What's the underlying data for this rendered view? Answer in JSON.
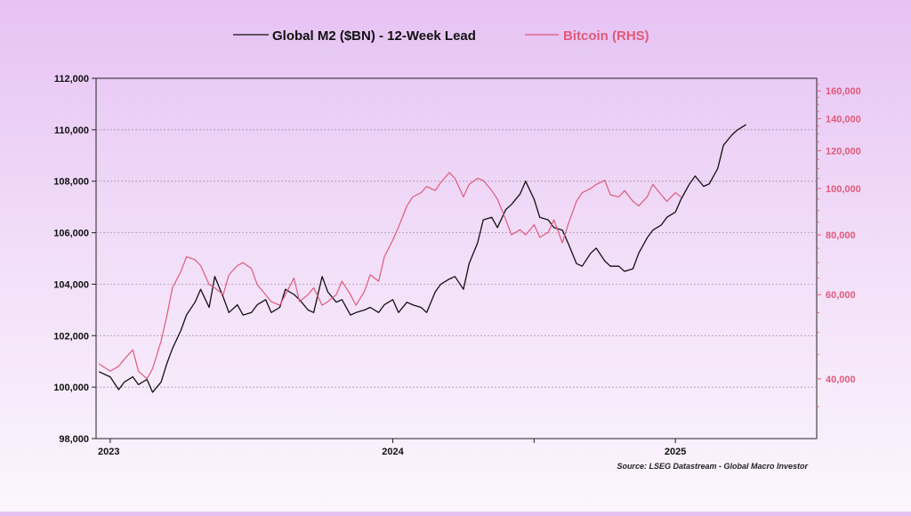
{
  "chart_data": {
    "type": "line",
    "title": "",
    "legend": {
      "position": "top-center",
      "entries": [
        {
          "name": "Global M2 ($BN) - 12-Week Lead",
          "color": "#111111"
        },
        {
          "name": "Bitcoin (RHS)",
          "color": "#e05a7a"
        }
      ]
    },
    "x_axis": {
      "ticks": [
        "2023",
        "2024",
        "2025"
      ],
      "range": [
        "2023-01",
        "2025-06"
      ]
    },
    "y_left": {
      "ylim": [
        98000,
        112000
      ],
      "ticks": [
        "98,000",
        "100,000",
        "102,000",
        "104,000",
        "106,000",
        "108,000",
        "110,000",
        "112,000"
      ],
      "tick_values": [
        98000,
        100000,
        102000,
        104000,
        106000,
        108000,
        110000,
        112000
      ]
    },
    "y_right": {
      "scale": "log",
      "ylim": [
        30000,
        170000
      ],
      "ticks": [
        "40,000",
        "60,000",
        "80,000",
        "100,000",
        "120,000",
        "140,000",
        "160,000"
      ],
      "tick_values": [
        40000,
        60000,
        80000,
        100000,
        120000,
        140000,
        160000
      ],
      "color": "#e05a7a"
    },
    "grid": true,
    "series": [
      {
        "name": "Global M2 ($BN) - 12-Week Lead",
        "axis": "left",
        "color": "#111111",
        "x": [
          2022.96,
          2023.0,
          2023.03,
          2023.05,
          2023.08,
          2023.1,
          2023.13,
          2023.15,
          2023.18,
          2023.2,
          2023.22,
          2023.25,
          2023.27,
          2023.3,
          2023.32,
          2023.35,
          2023.37,
          2023.4,
          2023.42,
          2023.45,
          2023.47,
          2023.5,
          2023.52,
          2023.55,
          2023.57,
          2023.6,
          2023.62,
          2023.65,
          2023.67,
          2023.7,
          2023.72,
          2023.75,
          2023.77,
          2023.8,
          2023.82,
          2023.85,
          2023.87,
          2023.9,
          2023.92,
          2023.95,
          2023.97,
          2024.0,
          2024.02,
          2024.05,
          2024.07,
          2024.1,
          2024.12,
          2024.15,
          2024.17,
          2024.2,
          2024.22,
          2024.25,
          2024.27,
          2024.3,
          2024.32,
          2024.35,
          2024.37,
          2024.4,
          2024.42,
          2024.45,
          2024.47,
          2024.5,
          2024.52,
          2024.55,
          2024.57,
          2024.6,
          2024.62,
          2024.65,
          2024.67,
          2024.7,
          2024.72,
          2024.75,
          2024.77,
          2024.8,
          2024.82,
          2024.85,
          2024.87,
          2024.9,
          2024.92,
          2024.95,
          2024.97,
          2025.0,
          2025.02,
          2025.05,
          2025.07,
          2025.1,
          2025.12,
          2025.15,
          2025.17,
          2025.2,
          2025.22,
          2025.25
        ],
        "values": [
          100600,
          100400,
          99900,
          100200,
          100400,
          100100,
          100300,
          99800,
          100200,
          100900,
          101500,
          102200,
          102800,
          103300,
          103800,
          103100,
          104300,
          103500,
          102900,
          103200,
          102800,
          102900,
          103200,
          103400,
          102900,
          103100,
          103800,
          103600,
          103400,
          103000,
          102900,
          104300,
          103700,
          103300,
          103400,
          102800,
          102900,
          103000,
          103100,
          102900,
          103200,
          103400,
          102900,
          103300,
          103200,
          103100,
          102900,
          103700,
          104000,
          104200,
          104300,
          103800,
          104800,
          105600,
          106500,
          106600,
          106200,
          106900,
          107100,
          107500,
          108000,
          107300,
          106600,
          106500,
          106200,
          106100,
          105600,
          104800,
          104700,
          105200,
          105400,
          104900,
          104700,
          104700,
          104500,
          104600,
          105200,
          105800,
          106100,
          106300,
          106600,
          106800,
          107300,
          107900,
          108200,
          107800,
          107900,
          108500,
          109400,
          109800,
          110000,
          110200
        ]
      },
      {
        "name": "Bitcoin (RHS)",
        "axis": "right",
        "color": "#e05a7a",
        "x": [
          2022.96,
          2023.0,
          2023.03,
          2023.05,
          2023.08,
          2023.1,
          2023.13,
          2023.15,
          2023.18,
          2023.2,
          2023.22,
          2023.25,
          2023.27,
          2023.3,
          2023.32,
          2023.35,
          2023.37,
          2023.4,
          2023.42,
          2023.45,
          2023.47,
          2023.5,
          2023.52,
          2023.55,
          2023.57,
          2023.6,
          2023.62,
          2023.65,
          2023.67,
          2023.7,
          2023.72,
          2023.75,
          2023.77,
          2023.8,
          2023.82,
          2023.85,
          2023.87,
          2023.9,
          2023.92,
          2023.95,
          2023.97,
          2024.0,
          2024.02,
          2024.05,
          2024.07,
          2024.1,
          2024.12,
          2024.15,
          2024.17,
          2024.2,
          2024.22,
          2024.25,
          2024.27,
          2024.3,
          2024.32,
          2024.35,
          2024.37,
          2024.4,
          2024.42,
          2024.45,
          2024.47,
          2024.5,
          2024.52,
          2024.55,
          2024.57,
          2024.6,
          2024.62,
          2024.65,
          2024.67,
          2024.7,
          2024.72,
          2024.75,
          2024.77,
          2024.8,
          2024.82,
          2024.85,
          2024.87,
          2024.9,
          2024.92,
          2024.95,
          2024.97,
          2025.0,
          2025.02
        ],
        "values": [
          43000,
          41500,
          42500,
          44000,
          46000,
          41500,
          40000,
          42000,
          48000,
          54000,
          62000,
          67000,
          72000,
          71000,
          69000,
          63000,
          62000,
          60000,
          66000,
          69000,
          70000,
          68000,
          63000,
          60000,
          58000,
          57000,
          60000,
          65000,
          58000,
          60000,
          62000,
          57000,
          58000,
          60000,
          64000,
          60000,
          57000,
          61000,
          66000,
          64000,
          72000,
          78000,
          83000,
          92000,
          96000,
          98000,
          101000,
          99000,
          103000,
          108000,
          105000,
          96000,
          102000,
          105000,
          104000,
          99000,
          95000,
          86000,
          80000,
          82000,
          80000,
          84000,
          79000,
          81000,
          86000,
          77000,
          84000,
          94000,
          98000,
          100000,
          102000,
          104000,
          97000,
          96000,
          99000,
          94000,
          92000,
          96000,
          102000,
          97000,
          94000,
          98000,
          96000
        ]
      }
    ],
    "source": "Source: LSEG Datastream - Global Macro Investor"
  }
}
